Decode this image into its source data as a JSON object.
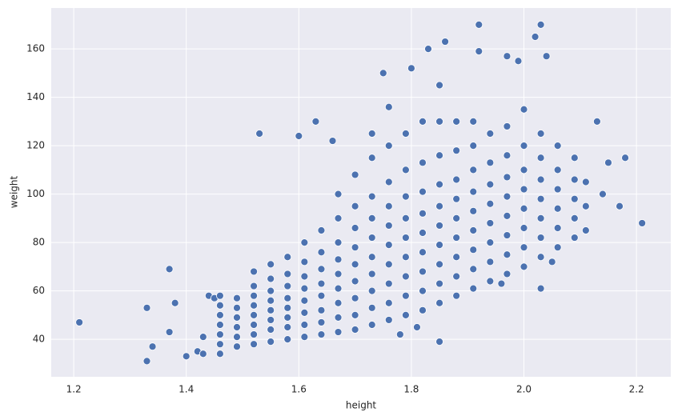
{
  "chart_data": {
    "type": "scatter",
    "x_label": "height",
    "y_label": "weight",
    "color": "#4c72b0",
    "grid": true,
    "xlim": [
      1.16,
      2.261
    ],
    "ylim": [
      24.5,
      176.9
    ],
    "xticks": [
      1.2,
      1.4,
      1.6,
      1.8,
      {
        "value": 2,
        "label": "2.0"
      },
      2.2
    ],
    "yticks": [
      40,
      60,
      80,
      100,
      120,
      140,
      160
    ],
    "x": [
      1.21,
      1.33,
      1.33,
      1.34,
      1.37,
      1.37,
      1.38,
      1.4,
      1.42,
      1.43,
      1.43,
      1.44,
      1.45,
      1.46,
      1.46,
      1.53,
      1.6,
      1.63,
      1.66,
      1.75,
      1.76,
      1.8,
      1.83,
      1.86,
      1.85,
      1.92,
      2.03,
      2.02,
      1.92,
      1.97,
      2.04,
      2.21,
      2.17,
      2.18,
      2.14,
      2.03,
      1.96,
      1.78,
      1.81,
      1.73,
      1.99,
      2.05,
      2.13,
      2.15,
      1.46,
      1.46,
      1.46,
      1.46,
      1.46,
      1.49,
      1.49,
      1.49,
      1.49,
      1.49,
      1.49,
      1.52,
      1.52,
      1.52,
      1.52,
      1.52,
      1.52,
      1.52,
      1.52,
      1.55,
      1.55,
      1.55,
      1.55,
      1.55,
      1.55,
      1.55,
      1.55,
      1.58,
      1.58,
      1.58,
      1.58,
      1.58,
      1.58,
      1.58,
      1.58,
      1.61,
      1.61,
      1.61,
      1.61,
      1.61,
      1.61,
      1.61,
      1.61,
      1.64,
      1.64,
      1.64,
      1.64,
      1.64,
      1.64,
      1.64,
      1.64,
      1.67,
      1.67,
      1.67,
      1.67,
      1.67,
      1.67,
      1.67,
      1.67,
      1.67,
      1.7,
      1.7,
      1.7,
      1.7,
      1.7,
      1.7,
      1.7,
      1.7,
      1.7,
      1.73,
      1.73,
      1.73,
      1.73,
      1.73,
      1.73,
      1.73,
      1.73,
      1.73,
      1.76,
      1.76,
      1.76,
      1.76,
      1.76,
      1.76,
      1.76,
      1.76,
      1.76,
      1.79,
      1.79,
      1.79,
      1.79,
      1.79,
      1.79,
      1.79,
      1.79,
      1.79,
      1.82,
      1.82,
      1.82,
      1.82,
      1.82,
      1.82,
      1.82,
      1.82,
      1.82,
      1.85,
      1.85,
      1.85,
      1.85,
      1.85,
      1.85,
      1.85,
      1.85,
      1.85,
      1.85,
      1.88,
      1.88,
      1.88,
      1.88,
      1.88,
      1.88,
      1.88,
      1.88,
      1.88,
      1.91,
      1.91,
      1.91,
      1.91,
      1.91,
      1.91,
      1.91,
      1.91,
      1.91,
      1.94,
      1.94,
      1.94,
      1.94,
      1.94,
      1.94,
      1.94,
      1.94,
      1.97,
      1.97,
      1.97,
      1.97,
      1.97,
      1.97,
      1.97,
      1.97,
      2.0,
      2.0,
      2.0,
      2.0,
      2.0,
      2.0,
      2.0,
      2.0,
      2.03,
      2.03,
      2.03,
      2.03,
      2.03,
      2.03,
      2.03,
      2.06,
      2.06,
      2.06,
      2.06,
      2.06,
      2.06,
      2.09,
      2.09,
      2.09,
      2.09,
      2.09,
      2.11,
      2.11,
      2.11
    ],
    "values": [
      47,
      53,
      31,
      37,
      69,
      43,
      55,
      33,
      35,
      41,
      34,
      58,
      57,
      58,
      34,
      125,
      124,
      130,
      122,
      150,
      136,
      152,
      160,
      163,
      39,
      170,
      170,
      165,
      159,
      157,
      157,
      88,
      95,
      115,
      100,
      61,
      63,
      42,
      45,
      125,
      155,
      72,
      130,
      113,
      38,
      42,
      46,
      50,
      54,
      37,
      41,
      45,
      49,
      53,
      57,
      38,
      42,
      46,
      50,
      54,
      58,
      62,
      68,
      39,
      44,
      48,
      52,
      56,
      60,
      65,
      71,
      40,
      45,
      49,
      53,
      57,
      62,
      67,
      74,
      41,
      46,
      51,
      56,
      61,
      66,
      72,
      80,
      42,
      47,
      52,
      58,
      63,
      69,
      76,
      85,
      43,
      49,
      55,
      61,
      67,
      73,
      80,
      90,
      100,
      44,
      50,
      57,
      64,
      71,
      78,
      86,
      95,
      108,
      46,
      53,
      60,
      67,
      74,
      82,
      90,
      99,
      115,
      48,
      55,
      63,
      71,
      79,
      87,
      95,
      105,
      120,
      50,
      58,
      66,
      74,
      82,
      90,
      99,
      110,
      125,
      52,
      60,
      68,
      76,
      84,
      92,
      101,
      113,
      130,
      55,
      63,
      71,
      79,
      87,
      95,
      104,
      116,
      130,
      145,
      58,
      66,
      74,
      82,
      90,
      98,
      106,
      118,
      130,
      61,
      69,
      77,
      85,
      93,
      101,
      110,
      120,
      130,
      64,
      72,
      80,
      88,
      96,
      104,
      113,
      125,
      67,
      75,
      83,
      91,
      99,
      107,
      116,
      128,
      70,
      78,
      86,
      94,
      102,
      110,
      120,
      135,
      74,
      82,
      90,
      98,
      106,
      115,
      125,
      78,
      86,
      94,
      102,
      110,
      120,
      82,
      90,
      98,
      106,
      115,
      85,
      95,
      105
    ]
  }
}
